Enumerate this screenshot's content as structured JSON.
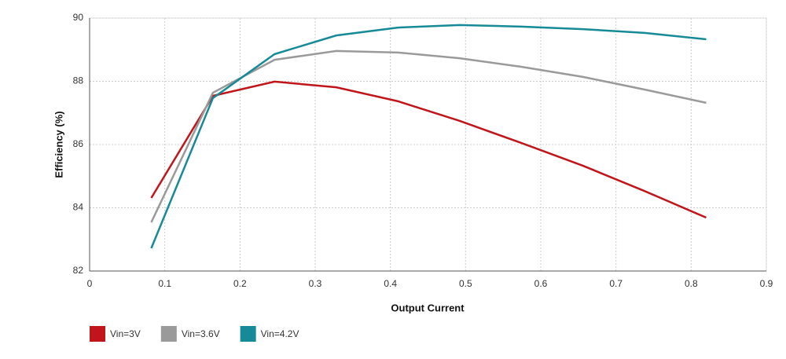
{
  "chart_data": {
    "type": "line",
    "x_label": "Output Current",
    "y_label": "Efficiency (%)",
    "x": [
      0.082,
      0.164,
      0.246,
      0.328,
      0.41,
      0.492,
      0.574,
      0.656,
      0.738,
      0.82
    ],
    "series": [
      {
        "name": "Vin=3V",
        "color": "#c0161b",
        "values": [
          84.31,
          87.54,
          87.99,
          87.81,
          87.37,
          86.75,
          86.05,
          85.33,
          84.53,
          83.69
        ]
      },
      {
        "name": "Vin=3.6V",
        "color": "#9a9a9a",
        "values": [
          83.54,
          87.64,
          88.68,
          88.96,
          88.91,
          88.73,
          88.46,
          88.14,
          87.74,
          87.32
        ]
      },
      {
        "name": "Vin=4.2V",
        "color": "#168a96",
        "values": [
          82.72,
          87.47,
          88.86,
          89.45,
          89.7,
          89.78,
          89.73,
          89.65,
          89.53,
          89.33
        ]
      }
    ],
    "xlim": [
      0,
      0.9
    ],
    "xticks": [
      0,
      0.1,
      0.2,
      0.3,
      0.4,
      0.5,
      0.6,
      0.7,
      0.8,
      0.9
    ],
    "ylim": [
      82,
      90
    ],
    "yticks": [
      82,
      84,
      86,
      88,
      90
    ],
    "grid": true,
    "legend": "bottom-left"
  }
}
